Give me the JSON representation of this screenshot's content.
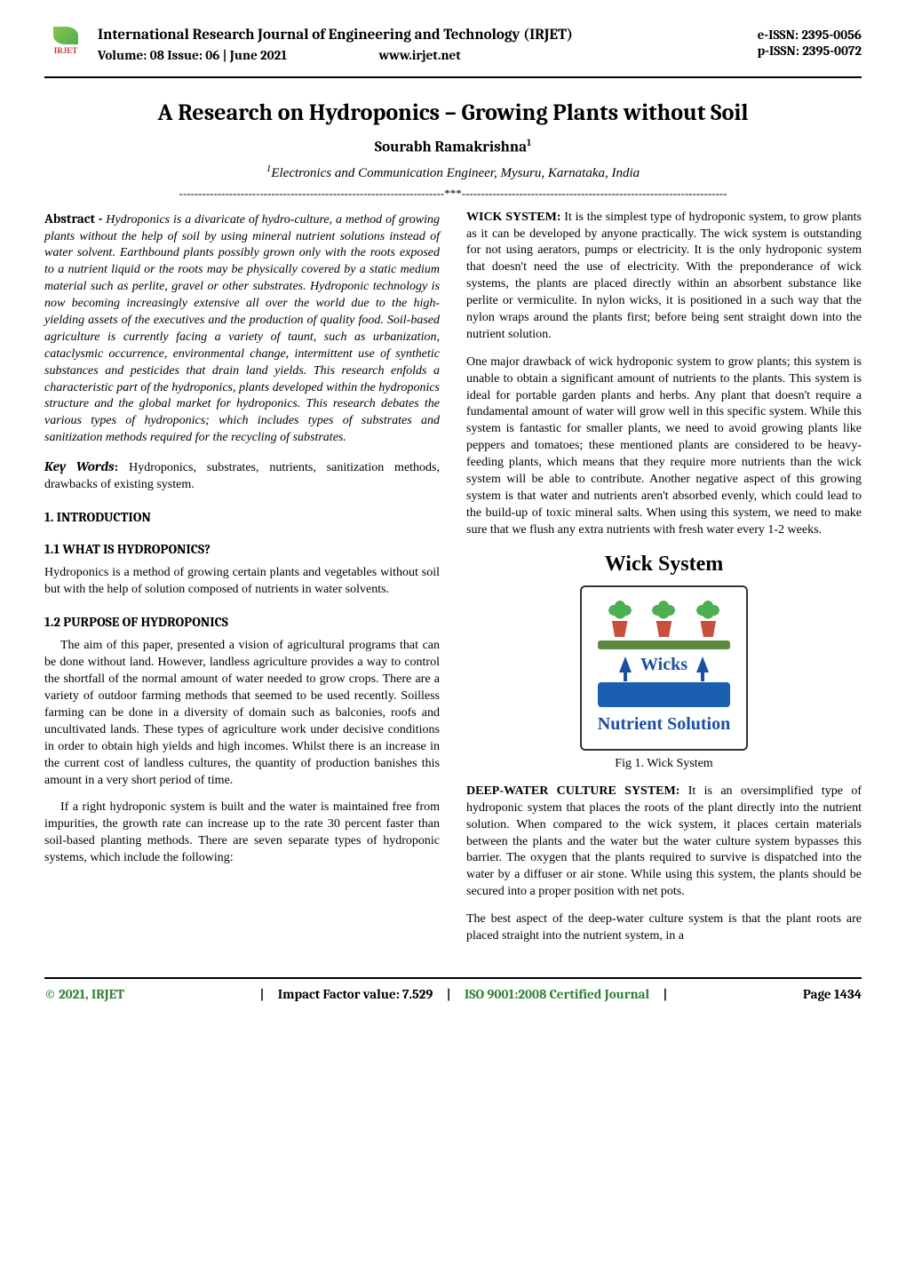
{
  "header": {
    "logo_label": "IRJET",
    "journal_title": "International Research Journal of Engineering and Technology (IRJET)",
    "volume_issue": "Volume: 08 Issue: 06 | June 2021",
    "url": "www.irjet.net",
    "e_issn": "e-ISSN: 2395-0056",
    "p_issn": "p-ISSN: 2395-0072"
  },
  "article": {
    "title": "A Research on Hydroponics – Growing Plants without Soil",
    "author": "Sourabh Ramakrishna",
    "author_sup": "1",
    "affiliation_sup": "1",
    "affiliation": "Electronics and Communication Engineer, Mysuru, Karnataka, India",
    "separator": "---------------------------------------------------------------------***---------------------------------------------------------------------"
  },
  "abstract": {
    "label": "Abstract -",
    "body": " Hydroponics is a divaricate of hydro-culture, a method of growing plants without the help of soil by using mineral nutrient solutions instead of water solvent. Earthbound plants possibly grown only with the roots exposed to a nutrient liquid or the roots may be physically covered by a static medium material such as perlite, gravel or other substrates. Hydroponic technology is now becoming increasingly extensive all over the world due to the high-yielding assets of the executives and the production of quality food. Soil-based agriculture is currently facing a variety of taunt, such as urbanization, cataclysmic occurrence, environmental change, intermittent use of synthetic substances and pesticides that drain land yields. This research enfolds a characteristic part of the hydroponics, plants developed within the hydroponics structure and the global market for hydroponics. This research debates the various types of hydroponics; which includes types of substrates and sanitization methods required for the recycling of substrates."
  },
  "keywords": {
    "label": "Key Words",
    "colon": ":  ",
    "body": "Hydroponics, substrates, nutrients, sanitization methods, drawbacks of existing system."
  },
  "sections": {
    "intro_head": "1. INTRODUCTION",
    "what_head": "1.1 WHAT IS HYDROPONICS?",
    "what_body": "Hydroponics is a method of growing certain plants and vegetables without soil but with the help of solution composed of nutrients in water solvents.",
    "purpose_head": "1.2 PURPOSE OF HYDROPONICS",
    "purpose_p1": "The aim of this paper, presented a vision of agricultural programs that can be done without land. However, landless agriculture provides a way to control the shortfall of the normal amount of water needed to grow crops. There are a variety of outdoor farming methods that seemed to be used recently. Soilless farming can be done in a diversity of domain such as balconies, roofs and uncultivated lands. These types of agriculture work under decisive conditions in order to obtain high yields and high incomes. Whilst there is an increase in the current cost of landless cultures, the quantity of production banishes this amount in a very short period of time.",
    "purpose_p2": "If a right hydroponic system is built and the water is maintained free from impurities, the growth rate can increase up to the rate 30 percent faster than soil-based planting methods. There are seven separate types of hydroponic systems, which include the following:"
  },
  "right_col": {
    "wick_label": "WICK SYSTEM:",
    "wick_p1": " It is the simplest type of hydroponic system, to grow plants as it can be developed by anyone practically. The wick system is outstanding for not using aerators, pumps or electricity. It is the only hydroponic system that doesn't need the use of electricity. With the preponderance of wick systems, the plants are placed directly within an absorbent substance like perlite or vermiculite. In nylon wicks, it is positioned in a such way that the nylon wraps around the plants first; before being sent straight down into the nutrient solution.",
    "wick_p2": "One major drawback of wick hydroponic system to grow plants; this system is unable to obtain a significant amount of nutrients to the plants. This system is ideal for portable garden plants and herbs. Any plant that doesn't require a fundamental amount of water will grow well in this specific system. While this system is fantastic for smaller plants, we need to avoid growing plants like peppers and tomatoes; these mentioned plants are considered to be heavy-feeding plants, which means that they require more nutrients than the wick system will be able to contribute. Another negative aspect of this growing system is that water and nutrients aren't absorbed evenly, which could lead to the build-up of toxic mineral salts. When using this system, we need to make sure that we flush any extra nutrients with fresh water every 1-2 weeks.",
    "fig_title": "Wick System",
    "wicks_label": "Wicks",
    "solution_label": "Nutrient Solution",
    "fig_caption": "Fig 1. Wick System",
    "deep_label": "DEEP-WATER CULTURE SYSTEM:",
    "deep_p1": " It is an oversimplified type of hydroponic system that places the roots of the plant directly into the nutrient solution. When compared to the wick system, it places certain materials between the plants and the water but the water culture system bypasses this barrier. The oxygen that the plants required to survive is dispatched into the water by a diffuser or air stone. While using this system, the plants should be secured into a proper position with net pots.",
    "deep_p2": "The best aspect of the deep-water culture system is that the plant roots are placed straight into the nutrient system, in a"
  },
  "footer": {
    "copyright": "© 2021, IRJET",
    "impact_label": "Impact Factor value: 7.529",
    "iso_label": "ISO 9001:2008 Certified Journal",
    "page_label": "Page 1434",
    "pipe": "|"
  },
  "colors": {
    "border": "#000000",
    "green_text": "#2e7d32",
    "fig_blue": "#1a4fa3",
    "solution_blue": "#1a5fb0",
    "tray_green": "#5b8a3c",
    "pot_red": "#c94f3d",
    "leaf_green": "#4caf50"
  }
}
